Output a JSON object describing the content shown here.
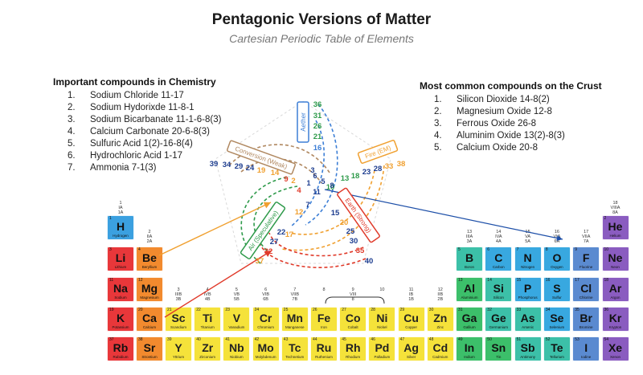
{
  "header": {
    "title": "Pentagonic Versions of Matter",
    "subtitle": "Cartesian Periodic Table of Elements"
  },
  "chemistry": {
    "heading": "Important compounds in Chemistry",
    "items": [
      {
        "num": "1.",
        "text": "Sodium Chloride 11-17"
      },
      {
        "num": "2.",
        "text": "Sodium Hydorixde 11-8-1"
      },
      {
        "num": "3.",
        "text": "Sodium Bicarbanate 11-1-6-8(3)"
      },
      {
        "num": "4.",
        "text": "Calcium Carbonate 20-6-8(3)"
      },
      {
        "num": "5.",
        "text": "Sulfuric Acid 1(2)-16-8(4)"
      },
      {
        "num": "6.",
        "text": "Hydrochloric Acid 1-17"
      },
      {
        "num": "7.",
        "text": "Ammonia 7-1(3)"
      }
    ]
  },
  "crust": {
    "heading": "Most common compounds on the Crust",
    "items": [
      {
        "num": "1.",
        "text": "Silicon Dioxide 14-8(2)"
      },
      {
        "num": "2.",
        "text": "Magnesium Oxide 12-8"
      },
      {
        "num": "3.",
        "text": "Ferrous Oxide 26-8"
      },
      {
        "num": "4.",
        "text": "Aluminim Oxide 13(2)-8(3)"
      },
      {
        "num": "5.",
        "text": "Calcium Oxide 20-8"
      }
    ]
  },
  "pentagon": {
    "axes": [
      {
        "label": "Aether",
        "color": "#3d7fd6",
        "numbers": [
          "36",
          "31",
          "26",
          "21",
          "16"
        ],
        "num_color": "#2e9a4a"
      },
      {
        "label": "Fire (EM)",
        "color": "#f0a030",
        "numbers": [
          "13",
          "18",
          "23",
          "28",
          "33",
          "38"
        ],
        "num_color": "#2e9a4a"
      },
      {
        "label": "Earth (Strong)",
        "color": "#e03a2a",
        "numbers": [
          "10",
          "15",
          "20",
          "25",
          "30",
          "35",
          "40"
        ],
        "num_color": "#1d3d8f"
      },
      {
        "label": "Air (Speculative)",
        "color": "#2e9a4a",
        "numbers": [
          "2",
          "7",
          "12",
          "17",
          "22",
          "27",
          "32",
          "37"
        ],
        "num_color": "#1d3d8f"
      },
      {
        "label": "Conversion (Weak)",
        "color": "#b08860",
        "numbers": [
          "4",
          "9",
          "14",
          "19",
          "24",
          "29",
          "34",
          "39"
        ],
        "num_color": "#1d3d8f"
      }
    ],
    "inner": [
      "1",
      "3",
      "5",
      "6",
      "8",
      "11"
    ]
  },
  "table": {
    "group_labels": [
      {
        "text": "1\nIA\n1A",
        "col": 1,
        "row": 0
      },
      {
        "text": "2\nIIA\n2A",
        "col": 2,
        "row": 1
      },
      {
        "text": "3\nIIIB\n3B",
        "col": 3,
        "row": 3
      },
      {
        "text": "4\nIVB\n4B",
        "col": 4,
        "row": 3
      },
      {
        "text": "5\nVB\n5B",
        "col": 5,
        "row": 3
      },
      {
        "text": "6\nVIB\n6B",
        "col": 6,
        "row": 3
      },
      {
        "text": "7\nVIIB\n7B",
        "col": 7,
        "row": 3
      },
      {
        "text": "8",
        "col": 8,
        "row": 3
      },
      {
        "text": "9\nVIII\n8",
        "col": 9,
        "row": 3
      },
      {
        "text": "10",
        "col": 10,
        "row": 3
      },
      {
        "text": "11\nIB\n1B",
        "col": 11,
        "row": 3
      },
      {
        "text": "12\nIIB\n2B",
        "col": 12,
        "row": 3
      },
      {
        "text": "13\nIIIA\n3A",
        "col": 13,
        "row": 1
      },
      {
        "text": "14\nIVA\n4A",
        "col": 14,
        "row": 1
      },
      {
        "text": "15\nVA\n5A",
        "col": 15,
        "row": 1
      },
      {
        "text": "16\nVIA\n6A",
        "col": 16,
        "row": 1
      },
      {
        "text": "17\nVIIA\n7A",
        "col": 17,
        "row": 1
      },
      {
        "text": "18\nVIIIA\n8A",
        "col": 18,
        "row": 0
      }
    ],
    "elements": [
      {
        "z": "1",
        "sym": "H",
        "name": "Hydrogen",
        "col": 1,
        "row": 1,
        "color": "#3ba0e0"
      },
      {
        "z": "2",
        "sym": "He",
        "name": "Helium",
        "col": 18,
        "row": 1,
        "color": "#8a5cc0"
      },
      {
        "z": "3",
        "sym": "Li",
        "name": "Lithium",
        "col": 1,
        "row": 2,
        "color": "#e8373a"
      },
      {
        "z": "4",
        "sym": "Be",
        "name": "Beryllium",
        "col": 2,
        "row": 2,
        "color": "#f28a2e"
      },
      {
        "z": "5",
        "sym": "B",
        "name": "Boron",
        "col": 13,
        "row": 2,
        "color": "#3cc0a8"
      },
      {
        "z": "6",
        "sym": "C",
        "name": "Carbon",
        "col": 14,
        "row": 2,
        "color": "#38a8e0"
      },
      {
        "z": "7",
        "sym": "N",
        "name": "Nitrogen",
        "col": 15,
        "row": 2,
        "color": "#38a8e0"
      },
      {
        "z": "8",
        "sym": "O",
        "name": "Oxygen",
        "col": 16,
        "row": 2,
        "color": "#38a8e0"
      },
      {
        "z": "9",
        "sym": "F",
        "name": "Fluorine",
        "col": 17,
        "row": 2,
        "color": "#5a8ad0"
      },
      {
        "z": "10",
        "sym": "Ne",
        "name": "Neon",
        "col": 18,
        "row": 2,
        "color": "#8a5cc0"
      },
      {
        "z": "11",
        "sym": "Na",
        "name": "Sodium",
        "col": 1,
        "row": 3,
        "color": "#e8373a"
      },
      {
        "z": "12",
        "sym": "Mg",
        "name": "Magnesium",
        "col": 2,
        "row": 3,
        "color": "#f28a2e"
      },
      {
        "z": "13",
        "sym": "Al",
        "name": "Aluminium",
        "col": 13,
        "row": 3,
        "color": "#3cbf6a"
      },
      {
        "z": "14",
        "sym": "Si",
        "name": "Silicon",
        "col": 14,
        "row": 3,
        "color": "#3cc0a8"
      },
      {
        "z": "15",
        "sym": "P",
        "name": "Phosphorus",
        "col": 15,
        "row": 3,
        "color": "#38a8e0"
      },
      {
        "z": "16",
        "sym": "S",
        "name": "Sulfur",
        "col": 16,
        "row": 3,
        "color": "#38a8e0"
      },
      {
        "z": "17",
        "sym": "Cl",
        "name": "Chlorine",
        "col": 17,
        "row": 3,
        "color": "#5a8ad0"
      },
      {
        "z": "18",
        "sym": "Ar",
        "name": "Argon",
        "col": 18,
        "row": 3,
        "color": "#8a5cc0"
      },
      {
        "z": "19",
        "sym": "K",
        "name": "Potassium",
        "col": 1,
        "row": 4,
        "color": "#e8373a"
      },
      {
        "z": "20",
        "sym": "Ca",
        "name": "Calcium",
        "col": 2,
        "row": 4,
        "color": "#f28a2e"
      },
      {
        "z": "21",
        "sym": "Sc",
        "name": "Scandium",
        "col": 3,
        "row": 4,
        "color": "#f5e23a"
      },
      {
        "z": "22",
        "sym": "Ti",
        "name": "Titanium",
        "col": 4,
        "row": 4,
        "color": "#f5e23a"
      },
      {
        "z": "23",
        "sym": "V",
        "name": "Vanadium",
        "col": 5,
        "row": 4,
        "color": "#f5e23a"
      },
      {
        "z": "24",
        "sym": "Cr",
        "name": "Chromium",
        "col": 6,
        "row": 4,
        "color": "#f5e23a"
      },
      {
        "z": "25",
        "sym": "Mn",
        "name": "Manganese",
        "col": 7,
        "row": 4,
        "color": "#f5e23a"
      },
      {
        "z": "26",
        "sym": "Fe",
        "name": "Iron",
        "col": 8,
        "row": 4,
        "color": "#f5e23a"
      },
      {
        "z": "27",
        "sym": "Co",
        "name": "Cobalt",
        "col": 9,
        "row": 4,
        "color": "#f5e23a"
      },
      {
        "z": "28",
        "sym": "Ni",
        "name": "Nickel",
        "col": 10,
        "row": 4,
        "color": "#f5e23a"
      },
      {
        "z": "29",
        "sym": "Cu",
        "name": "Copper",
        "col": 11,
        "row": 4,
        "color": "#f5e23a"
      },
      {
        "z": "30",
        "sym": "Zn",
        "name": "Zinc",
        "col": 12,
        "row": 4,
        "color": "#f5e23a"
      },
      {
        "z": "31",
        "sym": "Ga",
        "name": "Gallium",
        "col": 13,
        "row": 4,
        "color": "#3cbf6a"
      },
      {
        "z": "32",
        "sym": "Ge",
        "name": "Germanium",
        "col": 14,
        "row": 4,
        "color": "#3cc0a8"
      },
      {
        "z": "33",
        "sym": "As",
        "name": "Arsenic",
        "col": 15,
        "row": 4,
        "color": "#3cc0a8"
      },
      {
        "z": "34",
        "sym": "Se",
        "name": "Selenium",
        "col": 16,
        "row": 4,
        "color": "#38a8e0"
      },
      {
        "z": "35",
        "sym": "Br",
        "name": "Bromine",
        "col": 17,
        "row": 4,
        "color": "#5a8ad0"
      },
      {
        "z": "36",
        "sym": "Kr",
        "name": "Krypton",
        "col": 18,
        "row": 4,
        "color": "#8a5cc0"
      },
      {
        "z": "37",
        "sym": "Rb",
        "name": "Rubidium",
        "col": 1,
        "row": 5,
        "color": "#e8373a"
      },
      {
        "z": "38",
        "sym": "Sr",
        "name": "Strontium",
        "col": 2,
        "row": 5,
        "color": "#f28a2e"
      },
      {
        "z": "39",
        "sym": "Y",
        "name": "Yttrium",
        "col": 3,
        "row": 5,
        "color": "#f5e23a"
      },
      {
        "z": "40",
        "sym": "Zr",
        "name": "Zirconium",
        "col": 4,
        "row": 5,
        "color": "#f5e23a"
      },
      {
        "z": "41",
        "sym": "Nb",
        "name": "Niobium",
        "col": 5,
        "row": 5,
        "color": "#f5e23a"
      },
      {
        "z": "42",
        "sym": "Mo",
        "name": "Molybdenum",
        "col": 6,
        "row": 5,
        "color": "#f5e23a"
      },
      {
        "z": "43",
        "sym": "Tc",
        "name": "Technetium",
        "col": 7,
        "row": 5,
        "color": "#f5e23a"
      },
      {
        "z": "44",
        "sym": "Ru",
        "name": "Ruthenium",
        "col": 8,
        "row": 5,
        "color": "#f5e23a"
      },
      {
        "z": "45",
        "sym": "Rh",
        "name": "Rhodium",
        "col": 9,
        "row": 5,
        "color": "#f5e23a"
      },
      {
        "z": "46",
        "sym": "Pd",
        "name": "Palladium",
        "col": 10,
        "row": 5,
        "color": "#f5e23a"
      },
      {
        "z": "47",
        "sym": "Ag",
        "name": "Silver",
        "col": 11,
        "row": 5,
        "color": "#f5e23a"
      },
      {
        "z": "48",
        "sym": "Cd",
        "name": "Cadmium",
        "col": 12,
        "row": 5,
        "color": "#f5e23a"
      },
      {
        "z": "49",
        "sym": "In",
        "name": "Indium",
        "col": 13,
        "row": 5,
        "color": "#3cbf6a"
      },
      {
        "z": "50",
        "sym": "Sn",
        "name": "Tin",
        "col": 14,
        "row": 5,
        "color": "#3cbf6a"
      },
      {
        "z": "51",
        "sym": "Sb",
        "name": "Antimony",
        "col": 15,
        "row": 5,
        "color": "#3cc0a8"
      },
      {
        "z": "52",
        "sym": "Te",
        "name": "Tellurium",
        "col": 16,
        "row": 5,
        "color": "#3cc0a8"
      },
      {
        "z": "53",
        "sym": "I",
        "name": "Iodine",
        "col": 17,
        "row": 5,
        "color": "#5a8ad0"
      },
      {
        "z": "54",
        "sym": "Xe",
        "name": "Xenon",
        "col": 18,
        "row": 5,
        "color": "#8a5cc0"
      }
    ]
  }
}
